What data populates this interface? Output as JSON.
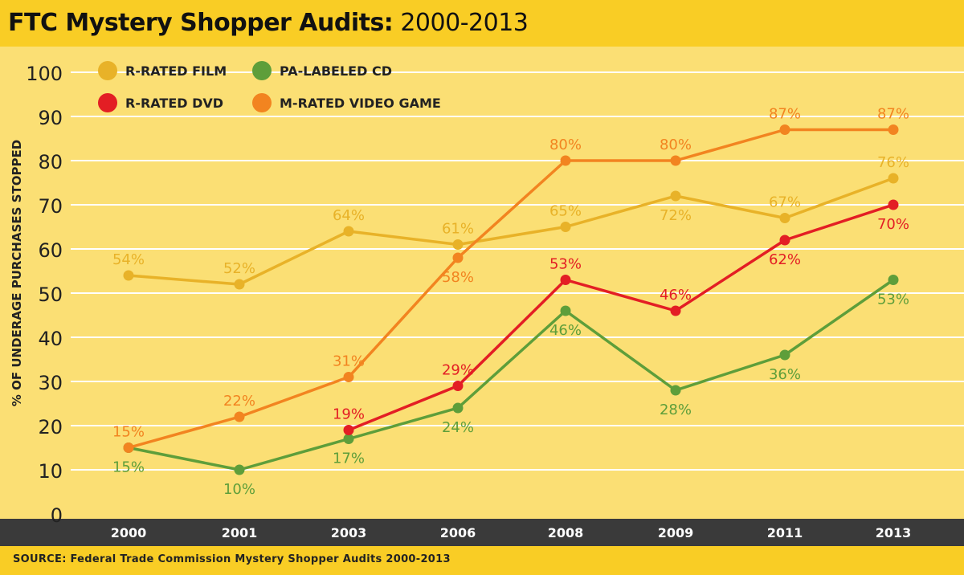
{
  "title": {
    "main": "FTC Mystery Shopper Audits:",
    "range": " 2000-2013"
  },
  "source": "SOURCE: Federal Trade Commission Mystery Shopper Audits 2000-2013",
  "colors": {
    "background": "#FBDF74",
    "title_band": "#F9CD25",
    "x_band": "#3A3A3A",
    "grid": "#FFFFFF",
    "r_rated_film": "#E8B228",
    "pa_labeled_cd": "#5E9E3A",
    "r_rated_dvd": "#E31E24",
    "m_rated_video_game": "#F28420"
  },
  "chart_data": {
    "type": "line",
    "title": "FTC Mystery Shopper Audits: 2000-2013",
    "xlabel": "",
    "ylabel": "% OF UNDERAGE PURCHASES STOPPED",
    "categories": [
      "2000",
      "2001",
      "2003",
      "2006",
      "2008",
      "2009",
      "2011",
      "2013"
    ],
    "ylim": [
      0,
      100
    ],
    "yticks": [
      0,
      10,
      20,
      30,
      40,
      50,
      60,
      70,
      80,
      90,
      100
    ],
    "grid": true,
    "legend_position": "top-left",
    "series": [
      {
        "name": "R-RATED FILM",
        "color": "#E8B228",
        "values": [
          54,
          52,
          64,
          61,
          65,
          72,
          67,
          76
        ],
        "labels": [
          "54%",
          "52%",
          "64%",
          "61%",
          "65%",
          "72%",
          "67%",
          "76%"
        ],
        "label_pos": [
          "above",
          "above",
          "above",
          "above",
          "above",
          "below",
          "above",
          "above"
        ]
      },
      {
        "name": "PA-LABELED CD",
        "color": "#5E9E3A",
        "values": [
          15,
          10,
          17,
          24,
          46,
          28,
          36,
          53
        ],
        "labels": [
          "15%",
          "10%",
          "17%",
          "24%",
          "46%",
          "28%",
          "36%",
          "53%"
        ],
        "label_pos": [
          "below",
          "below",
          "below",
          "below",
          "below",
          "below",
          "below",
          "below"
        ]
      },
      {
        "name": "R-RATED DVD",
        "color": "#E31E24",
        "values": [
          null,
          null,
          19,
          29,
          53,
          46,
          62,
          70
        ],
        "labels": [
          null,
          null,
          "19%",
          "29%",
          "53%",
          "46%",
          "62%",
          "70%"
        ],
        "label_pos": [
          null,
          null,
          "above",
          "above",
          "above",
          "above",
          "below",
          "below"
        ]
      },
      {
        "name": "M-RATED VIDEO GAME",
        "color": "#F28420",
        "values": [
          15,
          22,
          31,
          58,
          80,
          80,
          87,
          87
        ],
        "labels": [
          "15%",
          "22%",
          "31%",
          "58%",
          "80%",
          "80%",
          "87%",
          "87%"
        ],
        "label_pos": [
          "above",
          "above",
          "above",
          "below",
          "above",
          "above",
          "above",
          "above"
        ]
      }
    ],
    "legend_layout": [
      [
        "R-RATED FILM",
        "PA-LABELED CD"
      ],
      [
        "R-RATED DVD",
        "M-RATED VIDEO GAME"
      ]
    ]
  }
}
